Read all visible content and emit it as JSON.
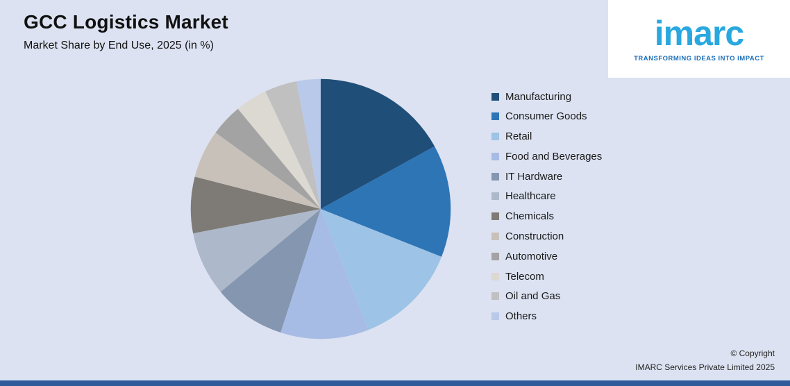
{
  "header": {
    "title": "GCC Logistics Market",
    "subtitle": "Market Share by End Use, 2025 (in %)"
  },
  "logo": {
    "brand": "imarc",
    "tagline": "TRANSFORMING IDEAS INTO IMPACT",
    "brand_color": "#29A8E0",
    "tagline_color": "#1B6FB8"
  },
  "chart_data": {
    "type": "pie",
    "title": "GCC Logistics Market",
    "subtitle": "Market Share by End Use, 2025 (in %)",
    "legend_position": "right",
    "start_angle_deg": -90,
    "direction": "clockwise",
    "slices": [
      {
        "label": "Manufacturing",
        "value": 17,
        "color": "#1F4E79"
      },
      {
        "label": "Consumer Goods",
        "value": 14,
        "color": "#2E75B6"
      },
      {
        "label": "Retail",
        "value": 13,
        "color": "#9DC3E6"
      },
      {
        "label": "Food and Beverages",
        "value": 11,
        "color": "#A7BCE4"
      },
      {
        "label": "IT Hardware",
        "value": 9,
        "color": "#8496B0"
      },
      {
        "label": "Healthcare",
        "value": 8,
        "color": "#ADB9CA"
      },
      {
        "label": "Chemicals",
        "value": 7,
        "color": "#7E7A75"
      },
      {
        "label": "Construction",
        "value": 6,
        "color": "#C8C1B9"
      },
      {
        "label": "Automotive",
        "value": 4,
        "color": "#A3A3A3"
      },
      {
        "label": "Telecom",
        "value": 4,
        "color": "#DCD8D2"
      },
      {
        "label": "Oil and Gas",
        "value": 4,
        "color": "#C0C0C0"
      },
      {
        "label": "Others",
        "value": 3,
        "color": "#B9C9E9"
      }
    ]
  },
  "footer": {
    "copyright_line1": "© Copyright",
    "copyright_line2": "IMARC Services Private Limited 2025"
  },
  "colors": {
    "background": "#DCE2F1",
    "bottom_bar": "#2F5B9B",
    "logo_panel": "#FFFFFF"
  }
}
